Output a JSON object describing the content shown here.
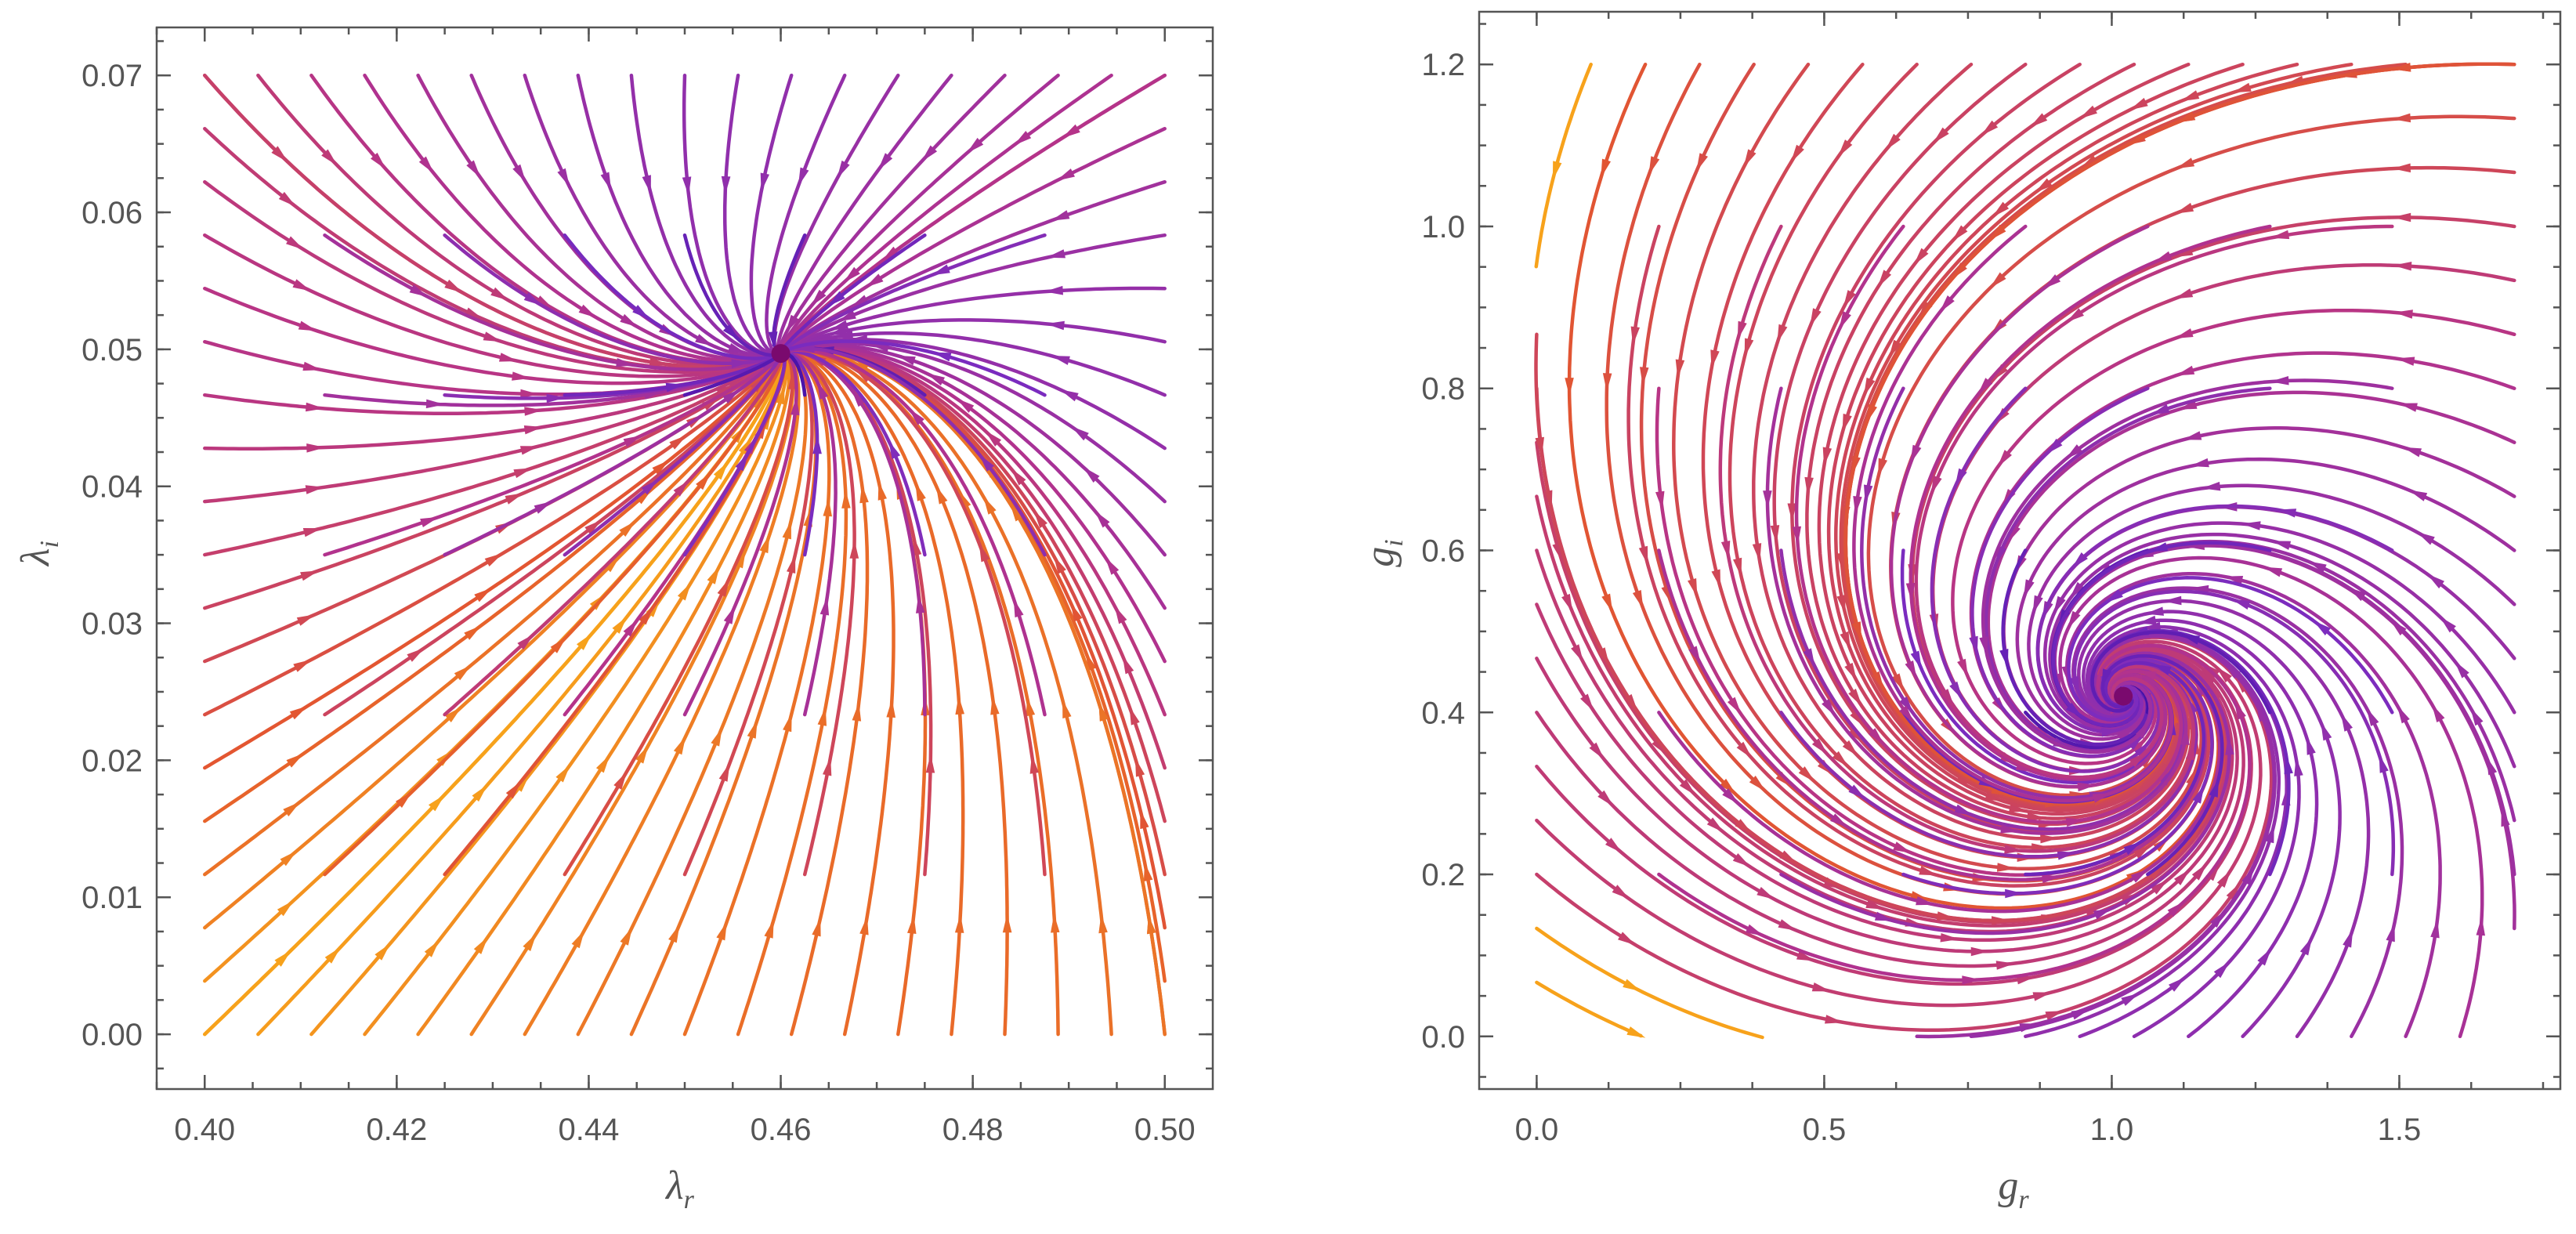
{
  "chart_data": [
    {
      "type": "stream",
      "panel": "left",
      "xlabel": "λ_r",
      "ylabel": "λ_i",
      "xlabel_base": "λ",
      "xlabel_sub": "r",
      "ylabel_base": "λ",
      "ylabel_sub": "i",
      "xlim": [
        0.395,
        0.505
      ],
      "ylim": [
        -0.004,
        0.0735
      ],
      "region": [
        0.4,
        0.5,
        0.0,
        0.07
      ],
      "xticks": [
        0.4,
        0.42,
        0.44,
        0.46,
        0.48,
        0.5
      ],
      "xtick_labels": [
        "0.40",
        "0.42",
        "0.44",
        "0.46",
        "0.48",
        "0.50"
      ],
      "yticks": [
        0.0,
        0.01,
        0.02,
        0.03,
        0.04,
        0.05,
        0.06,
        0.07
      ],
      "ytick_labels": [
        "0.00",
        "0.01",
        "0.02",
        "0.03",
        "0.04",
        "0.05",
        "0.06",
        "0.07"
      ],
      "fixed_point": {
        "x": 0.46,
        "y": 0.0497
      },
      "flow": "stable node: all streamlines converge to the fixed point",
      "color_scale": [
        "#3a0ca3",
        "#7b2cbf",
        "#b5338a",
        "#e4572e",
        "#f7a21b"
      ],
      "grid": false
    },
    {
      "type": "stream",
      "panel": "right",
      "xlabel": "g_r",
      "ylabel": "g_i",
      "xlabel_base": "g",
      "xlabel_sub": "r",
      "ylabel_base": "g",
      "ylabel_sub": "i",
      "xlim": [
        -0.1,
        1.78
      ],
      "ylim": [
        -0.065,
        1.265
      ],
      "region": [
        0.0,
        1.7,
        0.0,
        1.2
      ],
      "xticks": [
        0.0,
        0.5,
        1.0,
        1.5
      ],
      "xtick_labels": [
        "0.0",
        "0.5",
        "1.0",
        "1.5"
      ],
      "yticks": [
        0.0,
        0.2,
        0.4,
        0.6,
        0.8,
        1.0,
        1.2
      ],
      "ytick_labels": [
        "0.0",
        "0.2",
        "0.4",
        "0.6",
        "0.8",
        "1.0",
        "1.2"
      ],
      "fixed_point": {
        "x": 1.02,
        "y": 0.42
      },
      "flow": "stable focus-like node: streamlines curve counter-clockwise into the fixed point",
      "color_scale": [
        "#3a0ca3",
        "#7b2cbf",
        "#b5338a",
        "#e4572e",
        "#f7a21b"
      ],
      "grid": false
    }
  ]
}
